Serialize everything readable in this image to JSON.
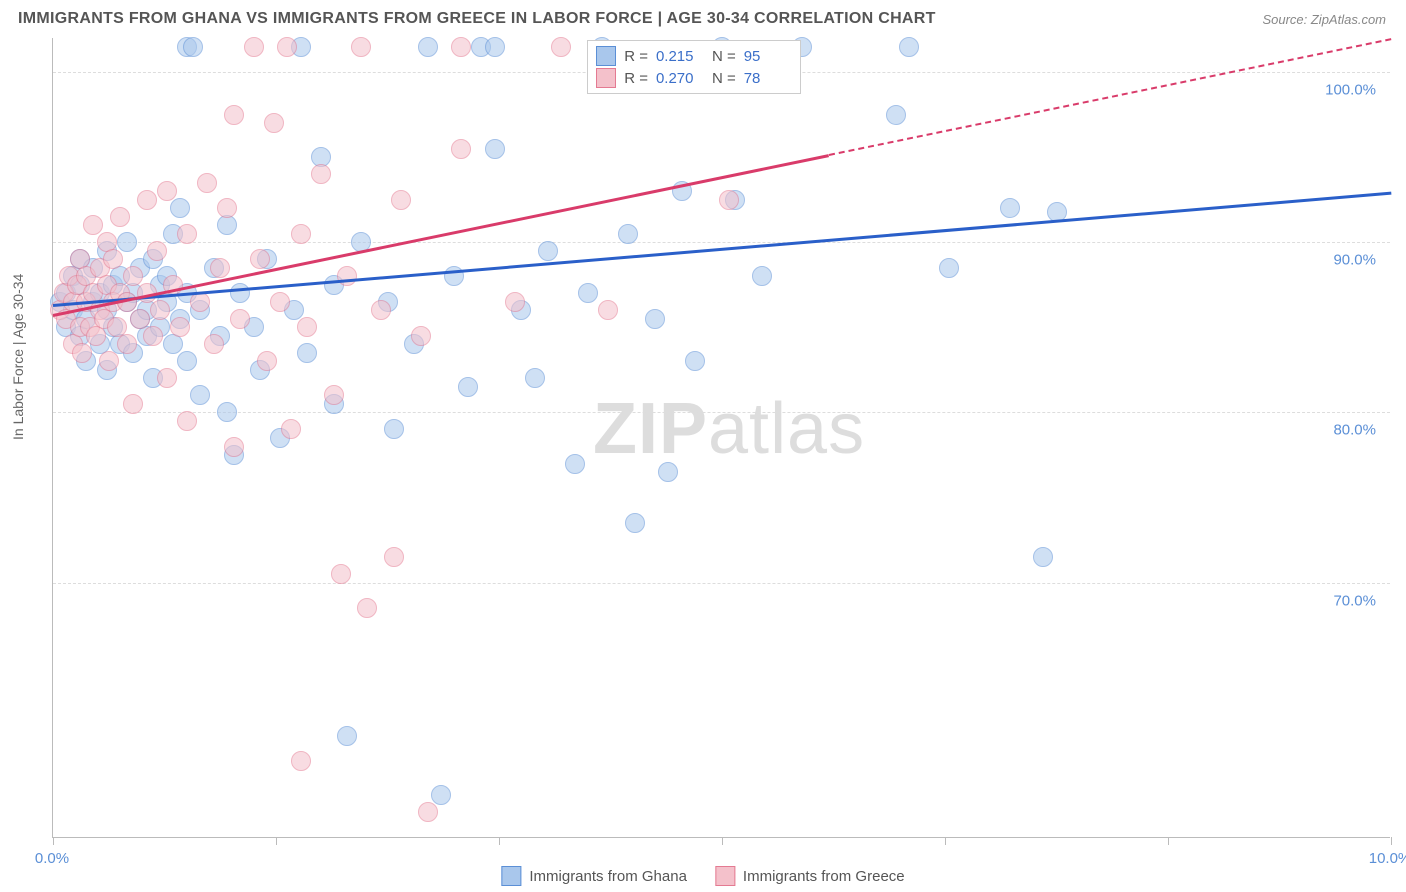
{
  "title": "IMMIGRANTS FROM GHANA VS IMMIGRANTS FROM GREECE IN LABOR FORCE | AGE 30-34 CORRELATION CHART",
  "source": "Source: ZipAtlas.com",
  "yaxis_title": "In Labor Force | Age 30-34",
  "watermark": {
    "part1": "ZIP",
    "part2": "atlas"
  },
  "chart": {
    "type": "scatter",
    "background_color": "#ffffff",
    "grid_color": "#dddddd",
    "axis_color": "#bbbbbb",
    "xlim": [
      0,
      10
    ],
    "ylim": [
      55,
      102
    ],
    "xticks": [
      0,
      1.67,
      3.33,
      5.0,
      6.67,
      8.33,
      10
    ],
    "xtick_labels": {
      "0": "0.0%",
      "10": "10.0%"
    },
    "yticks": [
      70,
      80,
      90,
      100
    ],
    "ytick_labels": {
      "70": "70.0%",
      "80": "80.0%",
      "90": "90.0%",
      "100": "100.0%"
    },
    "marker_radius": 10,
    "marker_opacity": 0.55,
    "series": [
      {
        "name": "Immigrants from Ghana",
        "color_fill": "#a9c7ec",
        "color_stroke": "#5b8fd6",
        "trend_color": "#2a5fc9",
        "trend": {
          "x1": 0.0,
          "y1": 86.4,
          "x2": 10.0,
          "y2": 93.0,
          "dashed_from_x": null
        },
        "R": "0.215",
        "N": "95",
        "points": [
          [
            0.05,
            86.5
          ],
          [
            0.1,
            87.0
          ],
          [
            0.1,
            85.0
          ],
          [
            0.15,
            86.0
          ],
          [
            0.15,
            88.0
          ],
          [
            0.2,
            84.5
          ],
          [
            0.2,
            87.5
          ],
          [
            0.2,
            89.0
          ],
          [
            0.25,
            85.5
          ],
          [
            0.25,
            83.0
          ],
          [
            0.3,
            86.5
          ],
          [
            0.3,
            88.5
          ],
          [
            0.35,
            87.0
          ],
          [
            0.35,
            84.0
          ],
          [
            0.4,
            86.0
          ],
          [
            0.4,
            89.5
          ],
          [
            0.4,
            82.5
          ],
          [
            0.45,
            87.5
          ],
          [
            0.45,
            85.0
          ],
          [
            0.5,
            88.0
          ],
          [
            0.5,
            84.0
          ],
          [
            0.55,
            86.5
          ],
          [
            0.55,
            90.0
          ],
          [
            0.6,
            83.5
          ],
          [
            0.6,
            87.0
          ],
          [
            0.65,
            85.5
          ],
          [
            0.65,
            88.5
          ],
          [
            0.7,
            84.5
          ],
          [
            0.7,
            86.0
          ],
          [
            0.75,
            89.0
          ],
          [
            0.75,
            82.0
          ],
          [
            0.8,
            87.5
          ],
          [
            0.8,
            85.0
          ],
          [
            0.85,
            86.5
          ],
          [
            0.85,
            88.0
          ],
          [
            0.9,
            84.0
          ],
          [
            0.9,
            90.5
          ],
          [
            0.95,
            92.0
          ],
          [
            0.95,
            85.5
          ],
          [
            1.0,
            87.0
          ],
          [
            1.0,
            83.0
          ],
          [
            1.0,
            101.5
          ],
          [
            1.05,
            101.5
          ],
          [
            1.1,
            86.0
          ],
          [
            1.1,
            81.0
          ],
          [
            1.2,
            88.5
          ],
          [
            1.25,
            84.5
          ],
          [
            1.3,
            91.0
          ],
          [
            1.3,
            80.0
          ],
          [
            1.35,
            77.5
          ],
          [
            1.4,
            87.0
          ],
          [
            1.5,
            85.0
          ],
          [
            1.55,
            82.5
          ],
          [
            1.6,
            89.0
          ],
          [
            1.7,
            78.5
          ],
          [
            1.8,
            86.0
          ],
          [
            1.85,
            101.5
          ],
          [
            1.9,
            83.5
          ],
          [
            2.0,
            95.0
          ],
          [
            2.1,
            87.5
          ],
          [
            2.1,
            80.5
          ],
          [
            2.2,
            61.0
          ],
          [
            2.3,
            90.0
          ],
          [
            2.5,
            86.5
          ],
          [
            2.55,
            79.0
          ],
          [
            2.7,
            84.0
          ],
          [
            2.8,
            101.5
          ],
          [
            2.9,
            57.5
          ],
          [
            3.0,
            88.0
          ],
          [
            3.1,
            81.5
          ],
          [
            3.2,
            101.5
          ],
          [
            3.3,
            95.5
          ],
          [
            3.3,
            101.5
          ],
          [
            3.5,
            86.0
          ],
          [
            3.6,
            82.0
          ],
          [
            3.7,
            89.5
          ],
          [
            3.9,
            77.0
          ],
          [
            4.0,
            87.0
          ],
          [
            4.1,
            101.5
          ],
          [
            4.3,
            90.5
          ],
          [
            4.35,
            73.5
          ],
          [
            4.5,
            85.5
          ],
          [
            4.6,
            76.5
          ],
          [
            4.7,
            93.0
          ],
          [
            4.8,
            83.0
          ],
          [
            5.0,
            101.5
          ],
          [
            5.1,
            92.5
          ],
          [
            5.3,
            88.0
          ],
          [
            5.6,
            101.5
          ],
          [
            6.3,
            97.5
          ],
          [
            6.4,
            101.5
          ],
          [
            6.7,
            88.5
          ],
          [
            7.15,
            92.0
          ],
          [
            7.4,
            71.5
          ],
          [
            7.5,
            91.8
          ]
        ]
      },
      {
        "name": "Immigrants from Greece",
        "color_fill": "#f4c1cb",
        "color_stroke": "#e47a92",
        "trend_color": "#d93b6a",
        "trend": {
          "x1": 0.0,
          "y1": 85.8,
          "x2": 10.0,
          "y2": 102.0,
          "dashed_from_x": 5.8
        },
        "R": "0.270",
        "N": "78",
        "points": [
          [
            0.05,
            86.0
          ],
          [
            0.08,
            87.0
          ],
          [
            0.1,
            85.5
          ],
          [
            0.12,
            88.0
          ],
          [
            0.15,
            84.0
          ],
          [
            0.15,
            86.5
          ],
          [
            0.18,
            87.5
          ],
          [
            0.2,
            85.0
          ],
          [
            0.2,
            89.0
          ],
          [
            0.22,
            83.5
          ],
          [
            0.25,
            86.5
          ],
          [
            0.25,
            88.0
          ],
          [
            0.28,
            85.0
          ],
          [
            0.3,
            87.0
          ],
          [
            0.3,
            91.0
          ],
          [
            0.32,
            84.5
          ],
          [
            0.35,
            86.0
          ],
          [
            0.35,
            88.5
          ],
          [
            0.38,
            85.5
          ],
          [
            0.4,
            87.5
          ],
          [
            0.4,
            90.0
          ],
          [
            0.42,
            83.0
          ],
          [
            0.45,
            86.5
          ],
          [
            0.45,
            89.0
          ],
          [
            0.48,
            85.0
          ],
          [
            0.5,
            87.0
          ],
          [
            0.5,
            91.5
          ],
          [
            0.55,
            84.0
          ],
          [
            0.55,
            86.5
          ],
          [
            0.6,
            88.0
          ],
          [
            0.6,
            80.5
          ],
          [
            0.65,
            85.5
          ],
          [
            0.7,
            92.5
          ],
          [
            0.7,
            87.0
          ],
          [
            0.75,
            84.5
          ],
          [
            0.78,
            89.5
          ],
          [
            0.8,
            86.0
          ],
          [
            0.85,
            93.0
          ],
          [
            0.85,
            82.0
          ],
          [
            0.9,
            87.5
          ],
          [
            0.95,
            85.0
          ],
          [
            1.0,
            90.5
          ],
          [
            1.0,
            79.5
          ],
          [
            1.1,
            86.5
          ],
          [
            1.15,
            93.5
          ],
          [
            1.2,
            84.0
          ],
          [
            1.25,
            88.5
          ],
          [
            1.3,
            92.0
          ],
          [
            1.35,
            97.5
          ],
          [
            1.35,
            78.0
          ],
          [
            1.4,
            85.5
          ],
          [
            1.5,
            101.5
          ],
          [
            1.55,
            89.0
          ],
          [
            1.6,
            83.0
          ],
          [
            1.65,
            97.0
          ],
          [
            1.7,
            86.5
          ],
          [
            1.75,
            101.5
          ],
          [
            1.78,
            79.0
          ],
          [
            1.85,
            90.5
          ],
          [
            1.85,
            59.5
          ],
          [
            1.9,
            85.0
          ],
          [
            2.0,
            94.0
          ],
          [
            2.1,
            81.0
          ],
          [
            2.15,
            70.5
          ],
          [
            2.2,
            88.0
          ],
          [
            2.3,
            101.5
          ],
          [
            2.35,
            68.5
          ],
          [
            2.45,
            86.0
          ],
          [
            2.55,
            71.5
          ],
          [
            2.6,
            92.5
          ],
          [
            2.75,
            84.5
          ],
          [
            2.8,
            56.5
          ],
          [
            3.05,
            101.5
          ],
          [
            3.05,
            95.5
          ],
          [
            3.45,
            86.5
          ],
          [
            3.8,
            101.5
          ],
          [
            4.15,
            86.0
          ],
          [
            5.05,
            92.5
          ]
        ]
      }
    ]
  },
  "legend_bottom": [
    {
      "label": "Immigrants from Ghana",
      "fill": "#a9c7ec",
      "stroke": "#5b8fd6"
    },
    {
      "label": "Immigrants from Greece",
      "fill": "#f4c1cb",
      "stroke": "#e47a92"
    }
  ]
}
